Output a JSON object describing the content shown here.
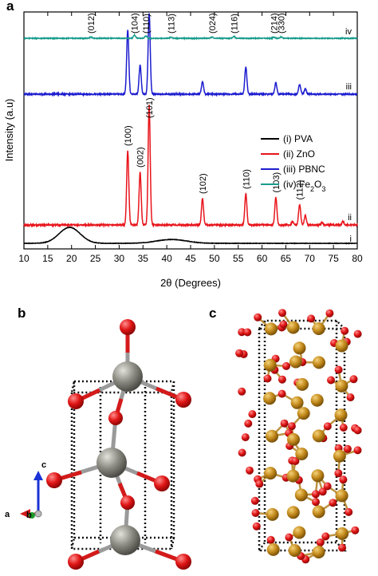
{
  "panels": {
    "a": "a",
    "b": "b",
    "c": "c"
  },
  "axis_labels": {
    "a": "a",
    "b": "b",
    "c": "c"
  },
  "chart_data": {
    "type": "line",
    "xlabel": "2θ (Degrees)",
    "ylabel": "Intensity (a.u)",
    "xlim": [
      10,
      80
    ],
    "x_ticks": [
      10,
      15,
      20,
      25,
      30,
      35,
      40,
      45,
      50,
      55,
      60,
      65,
      70,
      75,
      80
    ],
    "y_ticks": false,
    "grid": false,
    "legend_position": "right",
    "legend": [
      {
        "label": "(i) PVA",
        "color": "#000000"
      },
      {
        "label": "(ii) ZnO",
        "color": "#e8141b"
      },
      {
        "label": "(iii) PBNC",
        "color": "#1c1ccf"
      },
      {
        "label": "(iv) Fe2O3",
        "color": "#199c8c"
      }
    ],
    "series": [
      {
        "name": "(i) PVA",
        "tag": "i",
        "color": "#000000",
        "broad_peaks": [
          {
            "x": 19.6,
            "height": 0.5,
            "width": 2.2
          }
        ],
        "peaks": []
      },
      {
        "name": "(ii) ZnO",
        "tag": "ii",
        "color": "#e8141b",
        "peaks": [
          {
            "x": 31.8,
            "height": 0.62,
            "label": "(100)"
          },
          {
            "x": 34.4,
            "height": 0.44,
            "label": "(002)"
          },
          {
            "x": 36.3,
            "height": 1.0,
            "label": "(101)"
          },
          {
            "x": 47.5,
            "height": 0.22,
            "label": "(102)"
          },
          {
            "x": 56.6,
            "height": 0.26,
            "label": "(110)"
          },
          {
            "x": 62.9,
            "height": 0.23,
            "label": "(103)"
          },
          {
            "x": 66.4,
            "height": 0.03,
            "label": ""
          },
          {
            "x": 67.9,
            "height": 0.17,
            "label": "(112)"
          },
          {
            "x": 69.1,
            "height": 0.08,
            "label": ""
          },
          {
            "x": 72.6,
            "height": 0.02,
            "label": ""
          },
          {
            "x": 77.0,
            "height": 0.03,
            "label": ""
          }
        ]
      },
      {
        "name": "(iii) PBNC",
        "tag": "iii",
        "color": "#1c1ccf",
        "peaks": [
          {
            "x": 31.8,
            "height": 0.62
          },
          {
            "x": 34.4,
            "height": 0.28
          },
          {
            "x": 36.3,
            "height": 0.78
          },
          {
            "x": 47.5,
            "height": 0.12
          },
          {
            "x": 56.6,
            "height": 0.26
          },
          {
            "x": 62.9,
            "height": 0.11
          },
          {
            "x": 67.9,
            "height": 0.09
          },
          {
            "x": 69.1,
            "height": 0.05
          }
        ]
      },
      {
        "name": "(iv) Fe2O3",
        "tag": "iv",
        "color": "#199c8c",
        "peaks": [
          {
            "x": 24.1,
            "height": 0.02,
            "label": "(012)"
          },
          {
            "x": 33.2,
            "height": 0.05,
            "label": "(104)"
          },
          {
            "x": 35.6,
            "height": 0.04,
            "label": "(110)"
          },
          {
            "x": 40.9,
            "height": 0.02,
            "label": "(113)"
          },
          {
            "x": 49.5,
            "height": 0.02,
            "label": "(024)"
          },
          {
            "x": 54.1,
            "height": 0.03,
            "label": "(116)"
          },
          {
            "x": 62.5,
            "height": 0.02,
            "label": "(214)"
          },
          {
            "x": 64.0,
            "height": 0.02,
            "label": "(330)"
          }
        ]
      }
    ]
  }
}
